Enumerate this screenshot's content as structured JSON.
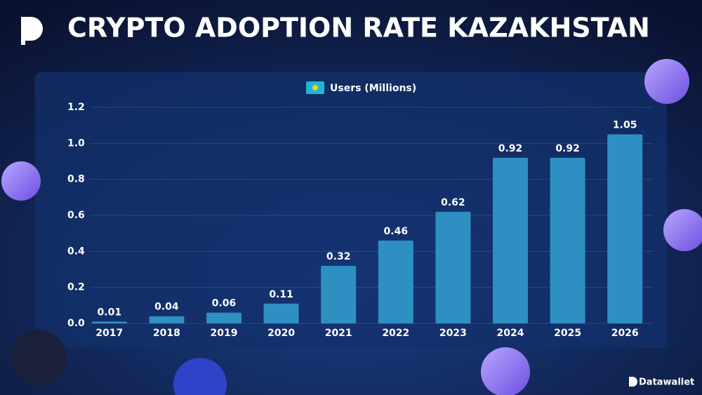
{
  "chart_data": {
    "type": "bar",
    "title": "CRYPTO ADOPTION RATE KAZAKHSTAN",
    "brand": "Datawallet",
    "categories": [
      "2017",
      "2018",
      "2019",
      "2020",
      "2021",
      "2022",
      "2023",
      "2024",
      "2025",
      "2026"
    ],
    "series": [
      {
        "name": "Users (Millions)",
        "color": "#2e8fc2",
        "values": [
          0.01,
          0.04,
          0.06,
          0.11,
          0.32,
          0.46,
          0.62,
          0.92,
          0.92,
          1.05
        ]
      }
    ],
    "ylim": [
      0,
      1.2
    ],
    "yticks": [
      {
        "value": 0,
        "label": "0.0"
      },
      0.2,
      0.4,
      0.6,
      0.8,
      {
        "value": 1,
        "label": "1.0"
      },
      1.2
    ],
    "grid": true,
    "legend": "top"
  }
}
